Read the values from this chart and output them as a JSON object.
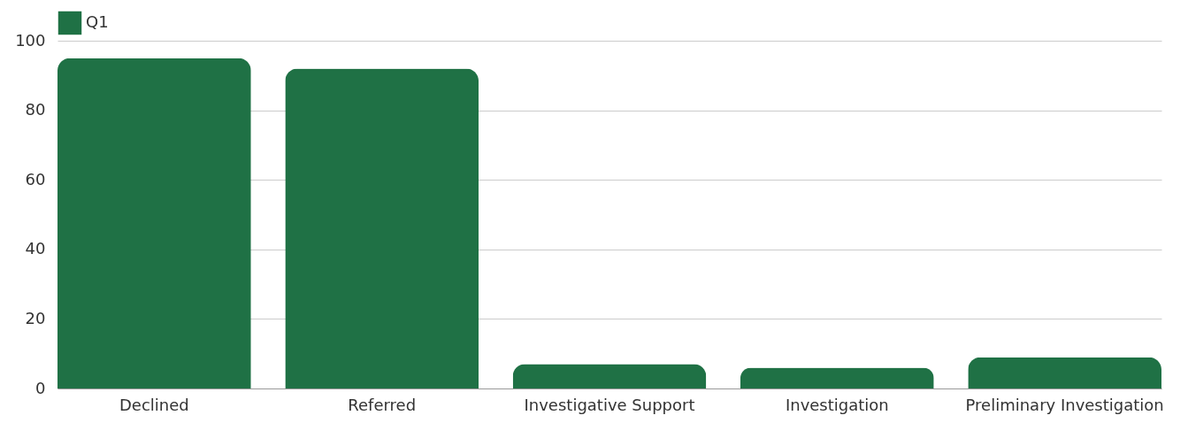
{
  "chart_data": {
    "type": "bar",
    "categories": [
      "Declined",
      "Referred",
      "Investigative Support",
      "Investigation",
      "Preliminary Investigation"
    ],
    "series": [
      {
        "name": "Q1",
        "color": "#1f7145",
        "values": [
          95,
          92,
          7,
          6,
          9
        ]
      }
    ],
    "ylim": [
      0,
      100
    ],
    "yticks": [
      0,
      20,
      40,
      60,
      80,
      100
    ],
    "grid": "y",
    "legend": "top"
  }
}
